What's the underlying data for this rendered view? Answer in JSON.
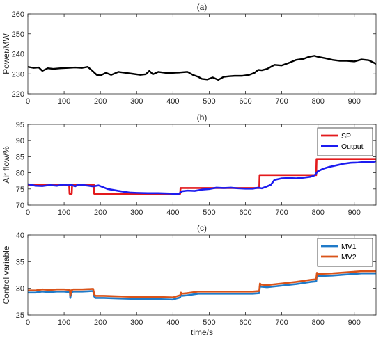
{
  "figure": {
    "xlabel": "time/s"
  },
  "chart_data": [
    {
      "type": "line",
      "title": "(a)",
      "xlabel": "",
      "ylabel": "Power/MW",
      "xlim": [
        0,
        960
      ],
      "ylim": [
        220,
        260
      ],
      "xticks": [
        0,
        100,
        200,
        300,
        400,
        500,
        600,
        700,
        800,
        900
      ],
      "yticks": [
        220,
        230,
        240,
        250,
        260
      ],
      "grid": false,
      "legend": null,
      "series": [
        {
          "color": "#000000",
          "x": [
            0,
            15,
            30,
            40,
            55,
            70,
            90,
            110,
            130,
            150,
            165,
            175,
            190,
            200,
            215,
            230,
            250,
            270,
            290,
            310,
            325,
            335,
            345,
            360,
            380,
            400,
            420,
            440,
            455,
            470,
            480,
            495,
            510,
            525,
            540,
            555,
            570,
            590,
            610,
            625,
            635,
            645,
            660,
            680,
            700,
            720,
            740,
            760,
            775,
            790,
            800,
            820,
            840,
            860,
            880,
            900,
            920,
            940,
            960
          ],
          "y": [
            233.5,
            233,
            233.2,
            231.5,
            232.8,
            232.5,
            232.8,
            233,
            233.2,
            233,
            233.5,
            232,
            229.5,
            229.2,
            230.5,
            229.5,
            231,
            230.5,
            230,
            229.5,
            229.8,
            231.5,
            229.8,
            231,
            230.5,
            230.5,
            230.7,
            231,
            229.5,
            228.5,
            227.5,
            227.2,
            228.2,
            227,
            228.5,
            228.8,
            229,
            229,
            229.5,
            230.5,
            232,
            231.8,
            232.5,
            234.5,
            234.2,
            235.5,
            237,
            237.5,
            238.5,
            239,
            238.5,
            237.8,
            237,
            236.5,
            236.5,
            236.2,
            237.2,
            236.8,
            235
          ]
        }
      ]
    },
    {
      "type": "line",
      "title": "(b)",
      "xlabel": "",
      "ylabel": "Air flow/%",
      "xlim": [
        0,
        960
      ],
      "ylim": [
        70,
        95
      ],
      "xticks": [
        0,
        100,
        200,
        300,
        400,
        500,
        600,
        700,
        800,
        900
      ],
      "yticks": [
        70,
        75,
        80,
        85,
        90,
        95
      ],
      "grid": false,
      "legend": "top-right",
      "series": [
        {
          "name": "SP",
          "color": "#e31a1c",
          "x": [
            0,
            114,
            115,
            118,
            121,
            122,
            182,
            183,
            420,
            421,
            638,
            639,
            795,
            796,
            960
          ],
          "y": [
            76.3,
            76.3,
            73.5,
            73.5,
            73.5,
            76.3,
            76.3,
            73.5,
            73.5,
            75.3,
            75.3,
            79.3,
            79.3,
            84.3,
            84.3
          ]
        },
        {
          "name": "Output",
          "color": "#1c1cf0",
          "x": [
            0,
            20,
            40,
            60,
            80,
            100,
            110,
            120,
            130,
            140,
            160,
            180,
            195,
            220,
            250,
            280,
            300,
            330,
            360,
            390,
            415,
            425,
            440,
            460,
            480,
            500,
            520,
            540,
            560,
            580,
            600,
            620,
            635,
            645,
            655,
            670,
            680,
            700,
            720,
            740,
            760,
            780,
            790,
            800,
            815,
            830,
            850,
            870,
            890,
            910,
            930,
            950,
            960
          ],
          "y": [
            76.5,
            76,
            75.9,
            76.2,
            76,
            76.4,
            76.1,
            76.3,
            75.8,
            76.4,
            76.1,
            75.8,
            76.1,
            75,
            74.4,
            73.9,
            73.8,
            73.7,
            73.7,
            73.6,
            73.4,
            74.3,
            74.5,
            74.4,
            74.8,
            75,
            75.4,
            75.3,
            75.4,
            75.2,
            75.1,
            75.1,
            75.4,
            75.2,
            75.6,
            76.3,
            77.8,
            78.3,
            78.4,
            78.3,
            78.5,
            78.8,
            79.2,
            80.5,
            81.3,
            81.8,
            82.3,
            82.8,
            83.1,
            83.2,
            83.4,
            83.3,
            83.6
          ]
        }
      ]
    },
    {
      "type": "line",
      "title": "(c)",
      "xlabel": "time/s",
      "ylabel": "Control variable",
      "xlim": [
        0,
        960
      ],
      "ylim": [
        25,
        40
      ],
      "xticks": [
        0,
        100,
        200,
        300,
        400,
        500,
        600,
        700,
        800,
        900
      ],
      "yticks": [
        25,
        30,
        35,
        40
      ],
      "grid": false,
      "legend": "top-right",
      "series": [
        {
          "name": "MV1",
          "color": "#1f7ac8",
          "x": [
            0,
            20,
            40,
            60,
            80,
            100,
            116,
            117,
            120,
            122,
            125,
            150,
            180,
            183,
            186,
            210,
            250,
            300,
            350,
            400,
            420,
            422,
            425,
            440,
            470,
            500,
            540,
            580,
            620,
            638,
            640,
            643,
            660,
            700,
            740,
            780,
            795,
            797,
            800,
            840,
            880,
            920,
            950,
            960
          ],
          "y": [
            29.2,
            29.2,
            29.4,
            29.3,
            29.4,
            29.4,
            29.3,
            28.2,
            29.2,
            29.3,
            29.4,
            29.4,
            29.5,
            28.5,
            28.2,
            28.2,
            28.1,
            28,
            28,
            27.9,
            28.3,
            28.8,
            28.6,
            28.7,
            29,
            29,
            29,
            29,
            29,
            29.1,
            30.5,
            30.3,
            30.2,
            30.5,
            30.8,
            31.2,
            31.3,
            32.5,
            32.3,
            32.4,
            32.6,
            32.8,
            32.8,
            32.8
          ]
        },
        {
          "name": "MV2",
          "color": "#d95319",
          "x": [
            0,
            20,
            40,
            60,
            80,
            100,
            116,
            117,
            120,
            122,
            125,
            150,
            180,
            183,
            186,
            210,
            250,
            300,
            350,
            400,
            420,
            422,
            425,
            440,
            470,
            500,
            540,
            580,
            620,
            638,
            640,
            643,
            660,
            700,
            740,
            780,
            795,
            797,
            800,
            840,
            880,
            920,
            950,
            960
          ],
          "y": [
            29.6,
            29.6,
            29.8,
            29.7,
            29.8,
            29.8,
            29.7,
            28.6,
            29.6,
            29.7,
            29.8,
            29.8,
            29.9,
            28.9,
            28.6,
            28.6,
            28.5,
            28.4,
            28.4,
            28.3,
            28.7,
            29.2,
            29,
            29.1,
            29.4,
            29.4,
            29.4,
            29.4,
            29.4,
            29.5,
            30.9,
            30.7,
            30.6,
            30.9,
            31.2,
            31.6,
            31.7,
            32.9,
            32.7,
            32.8,
            33,
            33.2,
            33.2,
            33.2
          ]
        }
      ]
    }
  ]
}
